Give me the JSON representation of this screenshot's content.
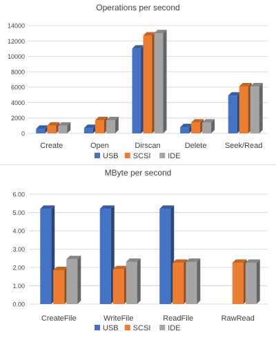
{
  "colors": {
    "usb": "#4472c4",
    "scsi": "#ed7d31",
    "ide": "#a5a5a5",
    "grid": "#d9d9d9",
    "text": "#404040"
  },
  "chart_data": [
    {
      "type": "bar",
      "title": "Operations per second",
      "categories": [
        "Create",
        "Open",
        "Dirscan",
        "Delete",
        "Seek/Read"
      ],
      "series": [
        {
          "name": "USB",
          "values": [
            600,
            700,
            11000,
            800,
            4900
          ]
        },
        {
          "name": "SCSI",
          "values": [
            1000,
            1700,
            12700,
            1400,
            6100
          ]
        },
        {
          "name": "IDE",
          "values": [
            1000,
            1700,
            13000,
            1400,
            6100
          ]
        }
      ],
      "ylim": [
        0,
        14000
      ],
      "yticks": [
        "0",
        "2000",
        "4000",
        "6000",
        "8000",
        "10000",
        "12000",
        "14000"
      ],
      "grid": true,
      "legend": "bottom",
      "style": "3d-clustered-column"
    },
    {
      "type": "bar",
      "title": "MByte per second",
      "categories": [
        "CreateFile",
        "WriteFile",
        "ReadFile",
        "RawRead"
      ],
      "series": [
        {
          "name": "USB",
          "values": [
            5.2,
            5.2,
            5.2,
            null
          ]
        },
        {
          "name": "SCSI",
          "values": [
            1.85,
            1.9,
            2.25,
            2.25
          ]
        },
        {
          "name": "IDE",
          "values": [
            2.45,
            2.3,
            2.3,
            2.25
          ]
        }
      ],
      "ylim": [
        0,
        6
      ],
      "yticks": [
        "0.00",
        "1.00",
        "2.00",
        "3.00",
        "4.00",
        "5.00",
        "6.00"
      ],
      "grid": true,
      "legend": "bottom",
      "style": "3d-clustered-column"
    }
  ]
}
